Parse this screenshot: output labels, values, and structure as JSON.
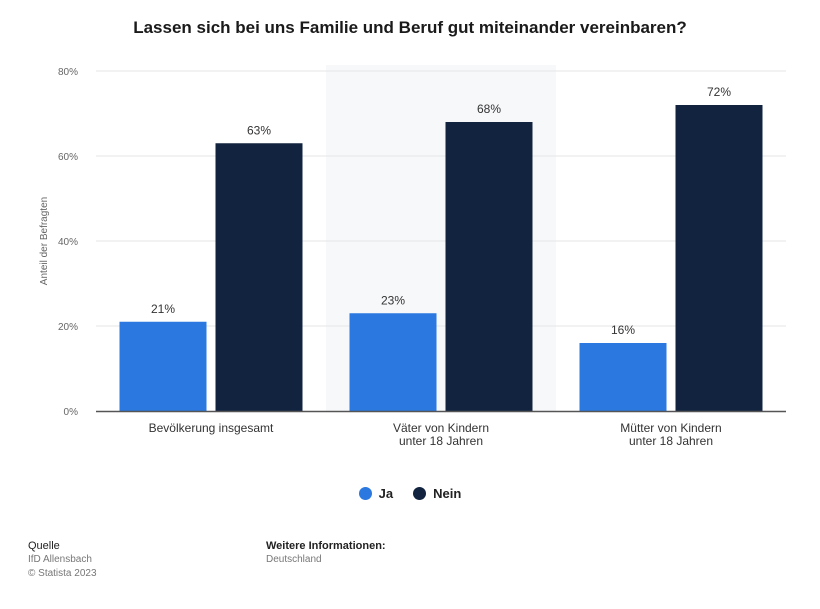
{
  "chart_data": {
    "type": "bar",
    "title": "Lassen sich bei uns Familie und Beruf gut miteinander vereinbaren?",
    "ylabel": "Anteil der Befragten",
    "xlabel": "",
    "ylim": [
      0,
      80
    ],
    "yticks": [
      "0%",
      "20%",
      "40%",
      "60%",
      "80%"
    ],
    "grid": true,
    "legend_position": "bottom",
    "categories": [
      [
        "Bevölkerung insgesamt"
      ],
      [
        "Väter von Kindern",
        "unter 18 Jahren"
      ],
      [
        "Mütter von Kindern",
        "unter 18 Jahren"
      ]
    ],
    "series": [
      {
        "name": "Ja",
        "color": "#2a78e0",
        "values": [
          21,
          23,
          16
        ],
        "labels": [
          "21%",
          "23%",
          "16%"
        ]
      },
      {
        "name": "Nein",
        "color": "#12233f",
        "values": [
          63,
          68,
          72
        ],
        "labels": [
          "63%",
          "68%",
          "72%"
        ]
      }
    ]
  },
  "legend": {
    "ja": "Ja",
    "nein": "Nein",
    "ja_color": "#2a78e0",
    "nein_color": "#12233f"
  },
  "footer": {
    "source_label": "Quelle",
    "source_name": "IfD Allensbach",
    "copyright": "© Statista 2023",
    "info_label": "Weitere Informationen:",
    "info_value": "Deutschland"
  }
}
